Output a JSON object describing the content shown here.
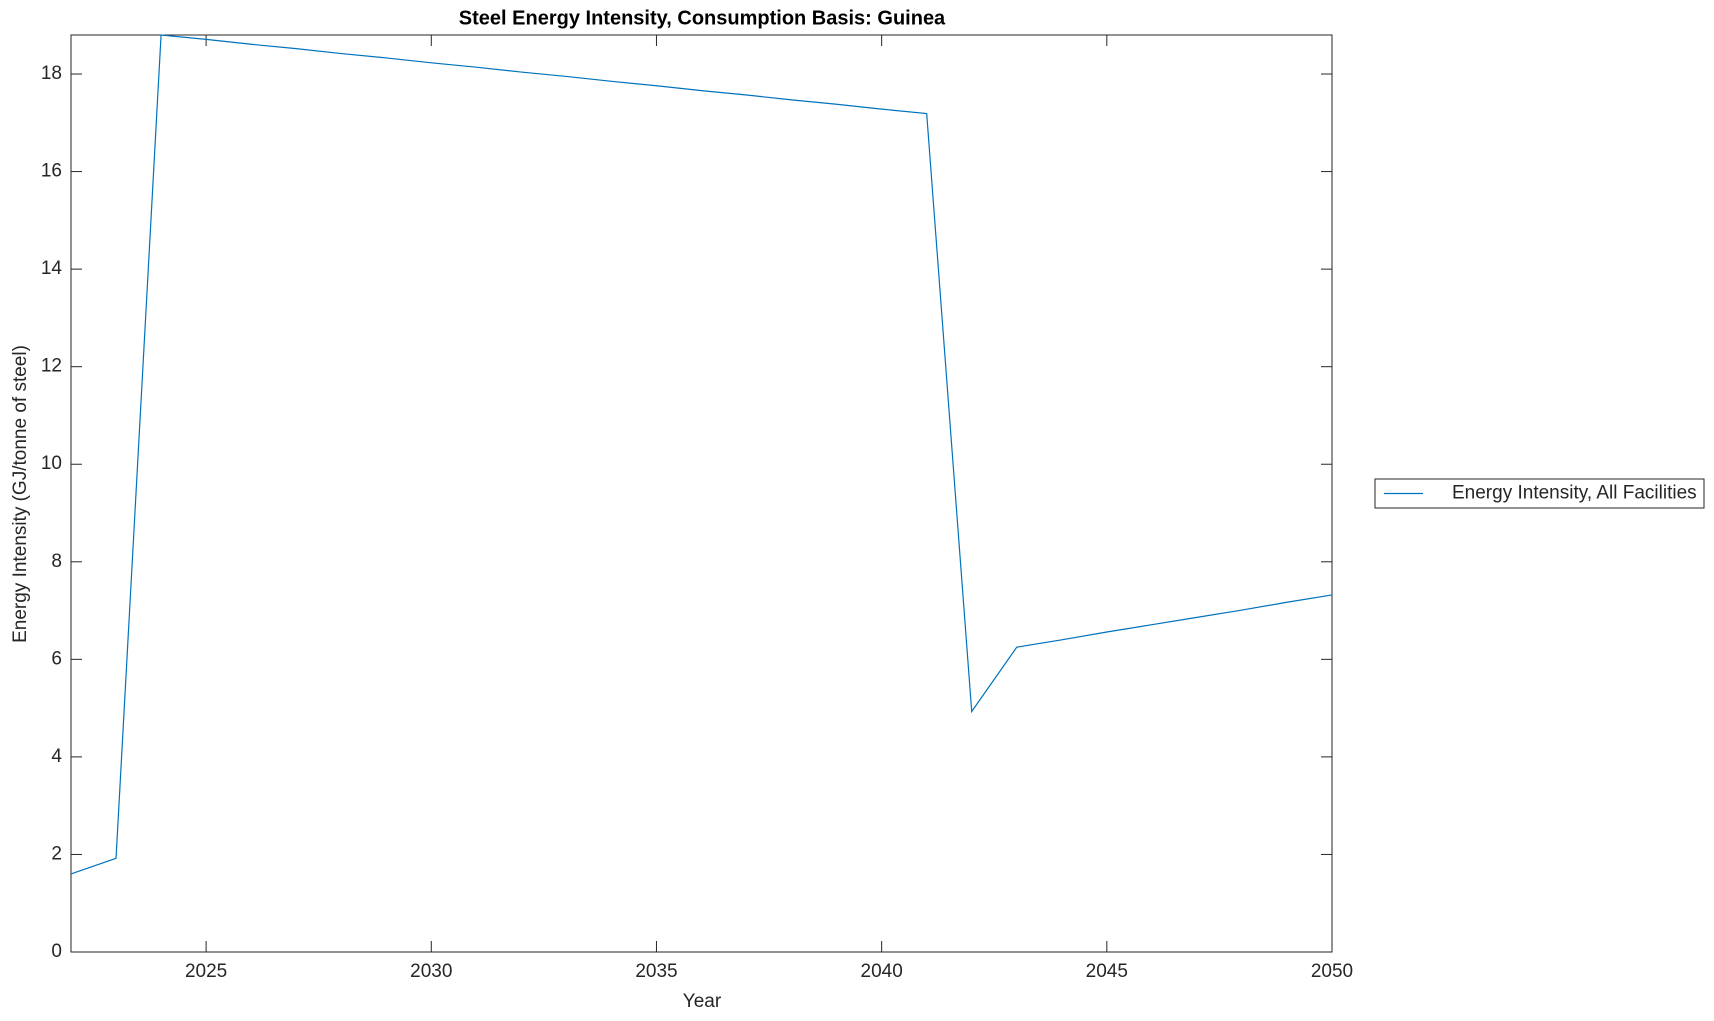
{
  "chart_data": {
    "type": "line",
    "title": "Steel Energy Intensity, Consumption Basis: Guinea",
    "x_label": "Year",
    "y_label": "Energy Intensity (GJ/tonne of steel)",
    "x": [
      2022,
      2023,
      2024,
      2025,
      2026,
      2027,
      2028,
      2029,
      2030,
      2031,
      2032,
      2033,
      2034,
      2035,
      2036,
      2037,
      2038,
      2039,
      2040,
      2041,
      2042,
      2043,
      2044,
      2045,
      2046,
      2047,
      2048,
      2049,
      2050
    ],
    "series": [
      {
        "name": "Energy Intensity, All Facilities",
        "color": "#0072bd",
        "values": [
          1.6,
          1.92,
          18.8,
          18.71,
          18.61,
          18.52,
          18.42,
          18.33,
          18.23,
          18.14,
          18.04,
          17.95,
          17.85,
          17.76,
          17.66,
          17.57,
          17.47,
          17.38,
          17.28,
          17.19,
          4.93,
          6.25,
          6.4,
          6.56,
          6.71,
          6.86,
          7.01,
          7.17,
          7.32
        ]
      }
    ],
    "xlim": [
      2022,
      2050
    ],
    "ylim": [
      0,
      18.8
    ],
    "xticks": [
      2025,
      2030,
      2035,
      2040,
      2045,
      2050
    ],
    "yticks": [
      0,
      2,
      4,
      6,
      8,
      10,
      12,
      14,
      16,
      18
    ],
    "grid": false,
    "legend": "east-outside"
  }
}
